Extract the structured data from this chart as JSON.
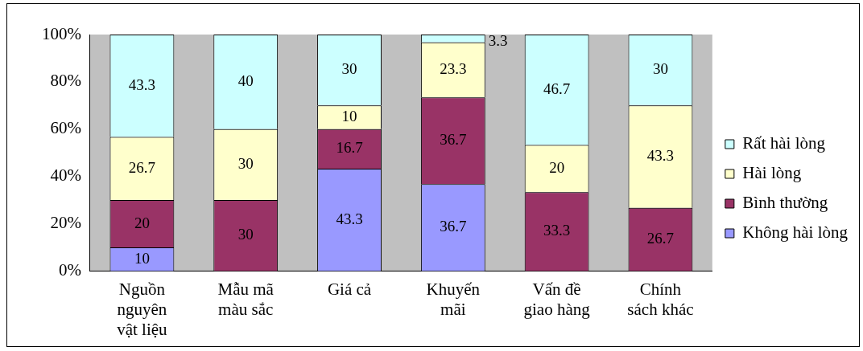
{
  "chart_data": {
    "type": "bar",
    "stacked": true,
    "categories": [
      "Nguồn nguyên vật liệu",
      "Mẫu mã màu sắc",
      "Giá cả",
      "Khuyến mãi",
      "Vấn đề giao hàng",
      "Chính sách khác"
    ],
    "series": [
      {
        "name": "Không hài lòng",
        "color": "#9999ff",
        "values": [
          10,
          null,
          43.3,
          36.7,
          null,
          null
        ]
      },
      {
        "name": "Bình thường",
        "color": "#993366",
        "values": [
          20,
          30,
          16.7,
          36.7,
          33.3,
          26.7
        ]
      },
      {
        "name": "Hài lòng",
        "color": "#ffffcc",
        "values": [
          26.7,
          30,
          10,
          23.3,
          20,
          43.3
        ]
      },
      {
        "name": "Rất hài lòng",
        "color": "#ccffff",
        "values": [
          43.3,
          40,
          30,
          3.3,
          46.7,
          30
        ]
      }
    ],
    "ylim": [
      0,
      100
    ],
    "yticks": [
      {
        "value": 0,
        "label": "0%"
      },
      {
        "value": 20,
        "label": "20%"
      },
      {
        "value": 40,
        "label": "40%"
      },
      {
        "value": 60,
        "label": "60%"
      },
      {
        "value": 80,
        "label": "80%"
      },
      {
        "value": 100,
        "label": "100%"
      }
    ],
    "grid": false,
    "legend": "right",
    "data_labels": true
  }
}
